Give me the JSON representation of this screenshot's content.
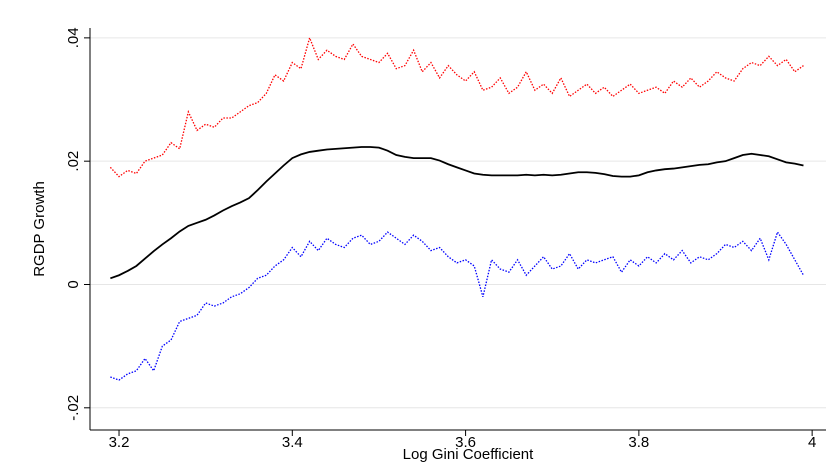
{
  "chart_data": {
    "type": "line",
    "x_label": "Log Gini Coefficient",
    "y_label": "RGDP Growth",
    "x": [
      3.19,
      3.2,
      3.21,
      3.22,
      3.23,
      3.24,
      3.25,
      3.26,
      3.27,
      3.28,
      3.29,
      3.3,
      3.31,
      3.32,
      3.33,
      3.34,
      3.35,
      3.36,
      3.37,
      3.38,
      3.39,
      3.4,
      3.41,
      3.42,
      3.43,
      3.44,
      3.45,
      3.46,
      3.47,
      3.48,
      3.49,
      3.5,
      3.51,
      3.52,
      3.53,
      3.54,
      3.55,
      3.56,
      3.57,
      3.58,
      3.59,
      3.6,
      3.61,
      3.62,
      3.63,
      3.64,
      3.65,
      3.66,
      3.67,
      3.68,
      3.69,
      3.7,
      3.71,
      3.72,
      3.73,
      3.74,
      3.75,
      3.76,
      3.77,
      3.78,
      3.79,
      3.8,
      3.81,
      3.82,
      3.83,
      3.84,
      3.85,
      3.86,
      3.87,
      3.88,
      3.89,
      3.9,
      3.91,
      3.92,
      3.93,
      3.94,
      3.95,
      3.96,
      3.97,
      3.98,
      3.99
    ],
    "series": [
      {
        "color": "#ff0000",
        "style": "dotted",
        "values": [
          0.019,
          0.0175,
          0.0185,
          0.018,
          0.02,
          0.0205,
          0.021,
          0.023,
          0.022,
          0.028,
          0.025,
          0.026,
          0.0255,
          0.027,
          0.027,
          0.028,
          0.029,
          0.0295,
          0.031,
          0.034,
          0.033,
          0.036,
          0.035,
          0.04,
          0.0365,
          0.038,
          0.037,
          0.0365,
          0.039,
          0.037,
          0.0365,
          0.036,
          0.0375,
          0.035,
          0.0355,
          0.038,
          0.0345,
          0.036,
          0.0335,
          0.0355,
          0.034,
          0.033,
          0.0345,
          0.0315,
          0.032,
          0.0335,
          0.031,
          0.032,
          0.0345,
          0.0315,
          0.0325,
          0.031,
          0.0335,
          0.0305,
          0.0315,
          0.0325,
          0.031,
          0.032,
          0.0305,
          0.0315,
          0.0325,
          0.031,
          0.0315,
          0.032,
          0.031,
          0.033,
          0.032,
          0.0335,
          0.032,
          0.033,
          0.0345,
          0.0335,
          0.033,
          0.035,
          0.036,
          0.0355,
          0.037,
          0.0355,
          0.0365,
          0.0345,
          0.0355
        ]
      },
      {
        "color": "#000000",
        "style": "solid",
        "values": [
          0.001,
          0.0015,
          0.0022,
          0.003,
          0.0042,
          0.0054,
          0.0065,
          0.0075,
          0.0086,
          0.0095,
          0.01,
          0.0105,
          0.0112,
          0.012,
          0.0127,
          0.0133,
          0.014,
          0.0153,
          0.0167,
          0.018,
          0.0193,
          0.0205,
          0.0211,
          0.0215,
          0.0217,
          0.0219,
          0.022,
          0.0221,
          0.0222,
          0.0223,
          0.0223,
          0.0222,
          0.0217,
          0.021,
          0.0207,
          0.0205,
          0.0205,
          0.0205,
          0.0201,
          0.0195,
          0.019,
          0.0185,
          0.018,
          0.0178,
          0.0177,
          0.0177,
          0.0177,
          0.0177,
          0.0178,
          0.0177,
          0.0178,
          0.0177,
          0.0178,
          0.018,
          0.0182,
          0.0182,
          0.0181,
          0.0179,
          0.0176,
          0.0175,
          0.0175,
          0.0177,
          0.0182,
          0.0185,
          0.0187,
          0.0188,
          0.019,
          0.0192,
          0.0194,
          0.0195,
          0.0198,
          0.02,
          0.0205,
          0.021,
          0.0212,
          0.021,
          0.0208,
          0.0203,
          0.0198,
          0.0196,
          0.0193
        ]
      },
      {
        "color": "#0000ff",
        "style": "dotted",
        "values": [
          -0.015,
          -0.0155,
          -0.0145,
          -0.014,
          -0.012,
          -0.014,
          -0.01,
          -0.009,
          -0.006,
          -0.0055,
          -0.005,
          -0.003,
          -0.0035,
          -0.003,
          -0.002,
          -0.0015,
          -0.0005,
          0.001,
          0.0015,
          0.003,
          0.004,
          0.006,
          0.0045,
          0.007,
          0.0055,
          0.0075,
          0.0065,
          0.006,
          0.0075,
          0.008,
          0.0065,
          0.007,
          0.0085,
          0.0075,
          0.0065,
          0.008,
          0.007,
          0.0055,
          0.006,
          0.0045,
          0.0035,
          0.004,
          0.003,
          -0.002,
          0.004,
          0.0025,
          0.002,
          0.004,
          0.0015,
          0.003,
          0.0045,
          0.0025,
          0.003,
          0.005,
          0.0025,
          0.004,
          0.0035,
          0.004,
          0.0045,
          0.002,
          0.004,
          0.003,
          0.0045,
          0.0035,
          0.005,
          0.004,
          0.0055,
          0.0035,
          0.0045,
          0.004,
          0.005,
          0.0065,
          0.006,
          0.007,
          0.0055,
          0.0075,
          0.004,
          0.0085,
          0.0065,
          0.004,
          0.0015
        ]
      }
    ],
    "xlim": [
      3.1665,
      4.016
    ],
    "xticks": [
      3.2,
      3.4,
      3.6,
      3.8,
      4
    ],
    "ylim": [
      -0.0236,
      0.0416
    ],
    "yticks": [
      {
        "value": -0.02,
        "label": "-.02"
      },
      0,
      {
        "value": 0.02,
        "label": ".02"
      },
      {
        "value": 0.04,
        "label": ".04"
      }
    ],
    "grid": true
  }
}
